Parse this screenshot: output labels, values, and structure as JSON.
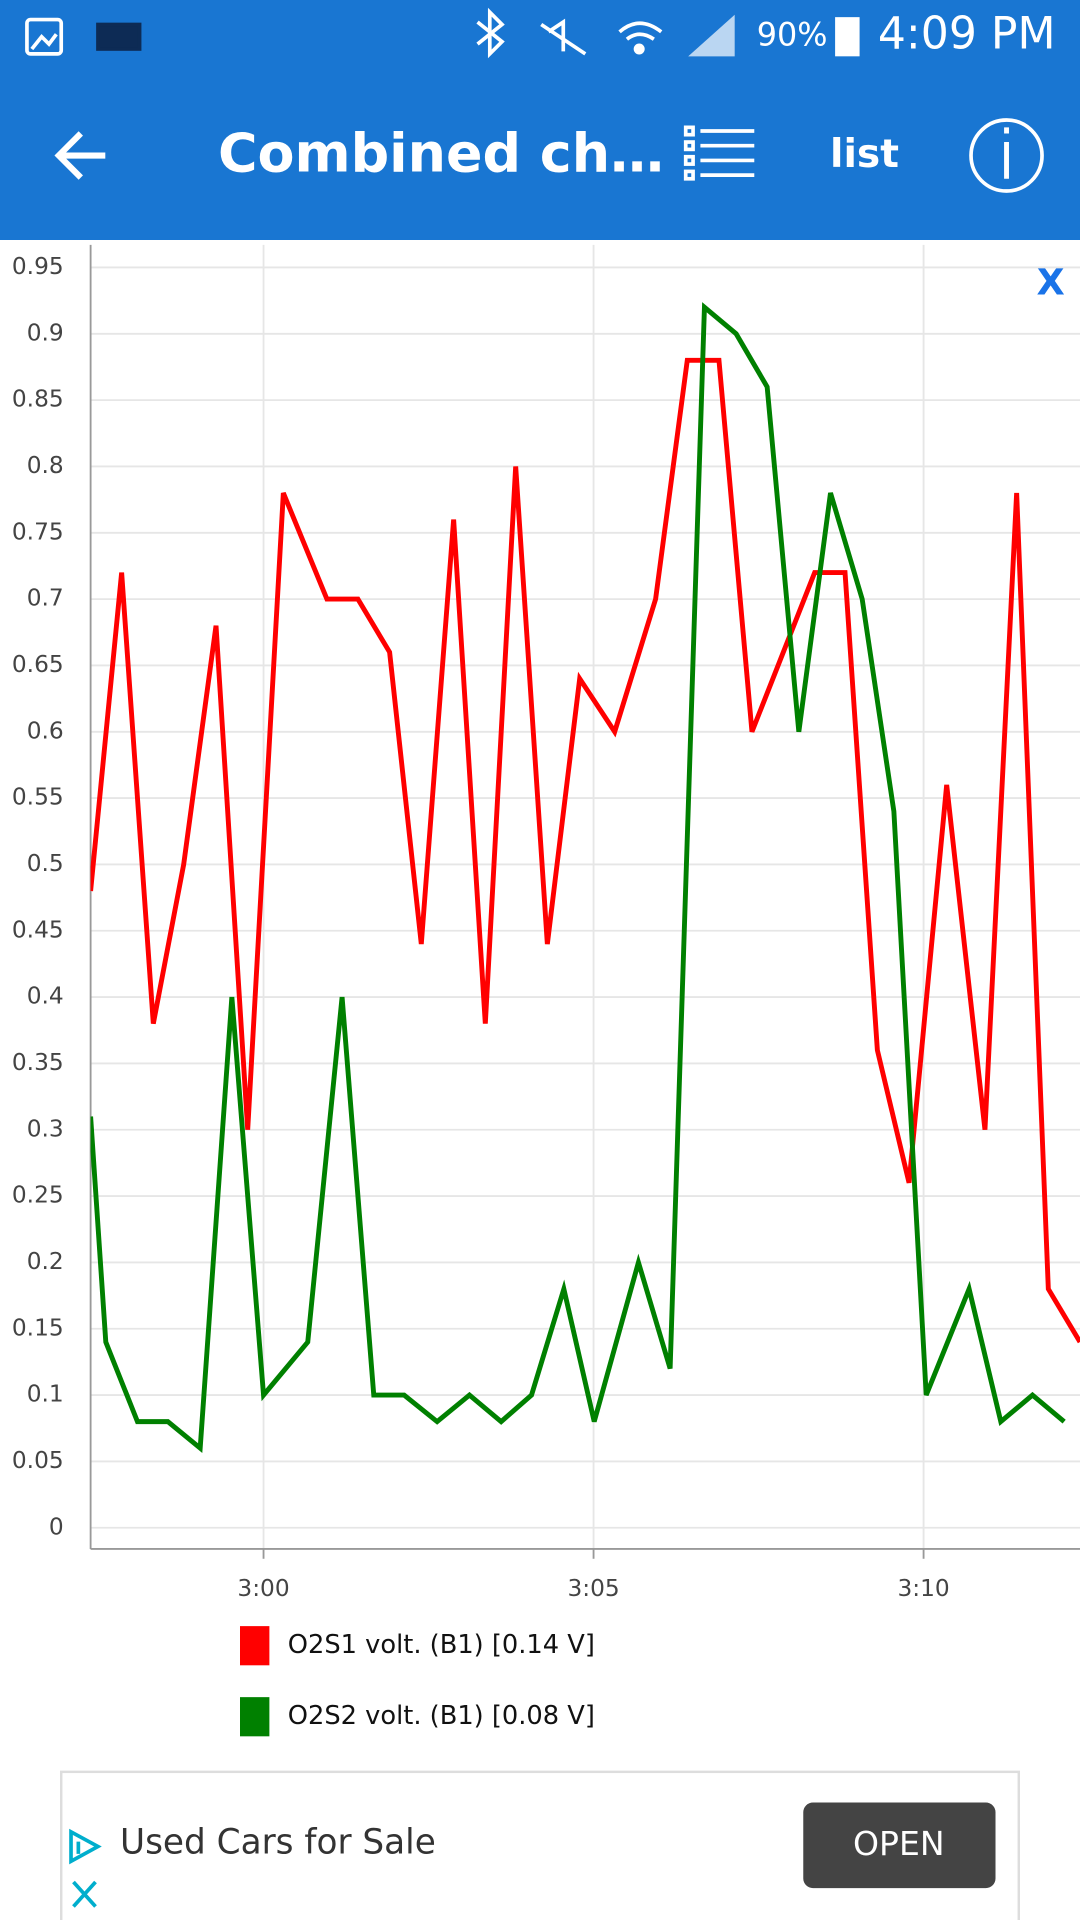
{
  "status_bar": {
    "battery": "90%",
    "time": "4:09 PM"
  },
  "app_bar": {
    "title": "Combined ch…",
    "list_button": "list"
  },
  "chart_close": "X",
  "chart_data": {
    "type": "line",
    "xlim": [
      177.38,
      192.37
    ],
    "xticks": [
      {
        "value": 180,
        "label": "3:00"
      },
      {
        "value": 185,
        "label": "3:05"
      },
      {
        "value": 190,
        "label": "3:10"
      }
    ],
    "ylim": [
      -0.016,
      0.967
    ],
    "yticks": [
      0,
      0.05,
      0.1,
      0.15,
      0.2,
      0.25,
      0.3,
      0.35,
      0.4,
      0.45,
      0.5,
      0.55,
      0.6,
      0.65,
      0.7,
      0.75,
      0.8,
      0.85,
      0.9,
      0.95
    ],
    "grid": true,
    "series": [
      {
        "name": "O2S1 volt. (B1) [0.14 V]",
        "color": "#ff0000",
        "x": [
          177.38,
          177.85,
          178.33,
          178.79,
          179.28,
          179.76,
          180.3,
          180.96,
          181.43,
          181.91,
          182.39,
          182.88,
          183.36,
          183.82,
          184.3,
          184.79,
          185.32,
          185.94,
          186.42,
          186.9,
          187.4,
          188.35,
          188.81,
          189.3,
          189.78,
          190.35,
          190.93,
          191.41,
          191.89,
          192.37
        ],
        "values": [
          0.48,
          0.72,
          0.38,
          0.5,
          0.68,
          0.3,
          0.78,
          0.7,
          0.7,
          0.66,
          0.44,
          0.76,
          0.38,
          0.8,
          0.44,
          0.64,
          0.6,
          0.7,
          0.88,
          0.88,
          0.6,
          0.72,
          0.72,
          0.36,
          0.26,
          0.56,
          0.3,
          0.78,
          0.18,
          0.14
        ]
      },
      {
        "name": "O2S2 volt. (B1) [0.08 V]",
        "color": "#008000",
        "x": [
          177.38,
          177.61,
          178.09,
          178.55,
          179.04,
          179.52,
          180.0,
          180.67,
          181.19,
          181.67,
          182.13,
          182.63,
          183.12,
          183.6,
          184.06,
          184.55,
          185.01,
          185.68,
          186.16,
          186.68,
          187.16,
          187.63,
          188.11,
          188.59,
          189.07,
          189.55,
          190.04,
          190.69,
          191.17,
          191.65,
          192.13
        ],
        "values": [
          0.31,
          0.14,
          0.08,
          0.08,
          0.06,
          0.4,
          0.1,
          0.14,
          0.4,
          0.1,
          0.1,
          0.08,
          0.1,
          0.08,
          0.1,
          0.18,
          0.08,
          0.2,
          0.12,
          0.92,
          0.9,
          0.86,
          0.6,
          0.78,
          0.7,
          0.54,
          0.1,
          0.18,
          0.08,
          0.1,
          0.08
        ]
      }
    ]
  },
  "ad": {
    "text": "Used Cars for Sale",
    "button": "OPEN"
  }
}
